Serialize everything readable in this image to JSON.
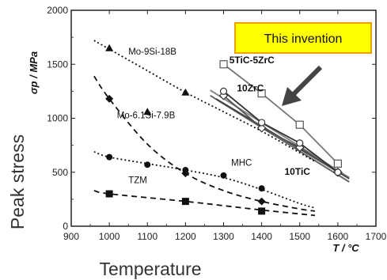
{
  "chart_data": {
    "type": "line",
    "title": "",
    "ylabel": "σp / MPa",
    "xlabel": "T / °C",
    "xlim": [
      900,
      1700
    ],
    "ylim": [
      0,
      2000
    ],
    "x_ticks": [
      "900",
      "1000",
      "1100",
      "1200",
      "1300",
      "1400",
      "1500",
      "1600",
      "1700"
    ],
    "y_ticks": [
      "0",
      "500",
      "1000",
      "1500",
      "2000"
    ],
    "grid": false,
    "series": [
      {
        "name": "Mo-9Si-18B",
        "marker": "triangle",
        "line": "dotted",
        "color": "#111111",
        "points": [
          [
            1000,
            1650
          ],
          [
            1100,
            1060
          ],
          [
            1200,
            1240
          ]
        ],
        "curve": [
          [
            960,
            1720
          ],
          [
            1000,
            1640
          ],
          [
            1100,
            1440
          ],
          [
            1200,
            1240
          ],
          [
            1300,
            1060
          ],
          [
            1400,
            880
          ],
          [
            1500,
            680
          ],
          [
            1540,
            600
          ]
        ]
      },
      {
        "name": "Mo-6.1Si-7.9B",
        "marker": "diamond",
        "line": "dashed",
        "color": "#111111",
        "points": [
          [
            1000,
            1180
          ],
          [
            1200,
            490
          ],
          [
            1400,
            230
          ]
        ],
        "curve": [
          [
            960,
            1390
          ],
          [
            1000,
            1180
          ],
          [
            1100,
            760
          ],
          [
            1200,
            490
          ],
          [
            1300,
            330
          ],
          [
            1400,
            230
          ],
          [
            1500,
            160
          ],
          [
            1540,
            140
          ]
        ]
      },
      {
        "name": "MHC",
        "marker": "circle",
        "line": "dotted",
        "color": "#111111",
        "points": [
          [
            1000,
            640
          ],
          [
            1100,
            570
          ],
          [
            1200,
            520
          ],
          [
            1300,
            470
          ],
          [
            1400,
            350
          ]
        ],
        "curve": [
          [
            960,
            690
          ],
          [
            1000,
            640
          ],
          [
            1100,
            580
          ],
          [
            1200,
            520
          ],
          [
            1300,
            450
          ],
          [
            1400,
            340
          ],
          [
            1500,
            210
          ],
          [
            1540,
            170
          ]
        ]
      },
      {
        "name": "TZM",
        "marker": "square",
        "line": "dashed",
        "color": "#111111",
        "points": [
          [
            1000,
            300
          ],
          [
            1200,
            230
          ],
          [
            1400,
            140
          ]
        ],
        "curve": [
          [
            960,
            330
          ],
          [
            1000,
            300
          ],
          [
            1200,
            230
          ],
          [
            1400,
            150
          ],
          [
            1540,
            100
          ]
        ]
      },
      {
        "name": "5TiC-5ZrC",
        "marker": "open-square",
        "line": "solid",
        "color": "#777777",
        "points": [
          [
            1300,
            1500
          ],
          [
            1400,
            1230
          ],
          [
            1500,
            940
          ],
          [
            1600,
            580
          ]
        ]
      },
      {
        "name": "10ZrC",
        "marker": "open-diamond",
        "line": "solid",
        "color": "#555555",
        "points": [
          [
            1300,
            1210
          ],
          [
            1400,
            910
          ],
          [
            1500,
            730
          ],
          [
            1600,
            500
          ]
        ]
      },
      {
        "name": "10TiC",
        "marker": "open-circle",
        "line": "solid",
        "color": "#333333",
        "points": [
          [
            1300,
            1250
          ],
          [
            1400,
            960
          ],
          [
            1500,
            770
          ],
          [
            1600,
            500
          ]
        ]
      }
    ],
    "fit_lines": [
      {
        "color": "#666666",
        "points": [
          [
            1265,
            1210
          ],
          [
            1630,
            410
          ]
        ]
      },
      {
        "color": "#888888",
        "points": [
          [
            1265,
            1260
          ],
          [
            1630,
            450
          ]
        ]
      },
      {
        "color": "#444444",
        "points": [
          [
            1280,
            1180
          ],
          [
            1630,
            440
          ]
        ]
      }
    ],
    "annotations": [
      {
        "text": "Mo-9Si-18B",
        "at": [
          1050,
          1590
        ]
      },
      {
        "text": "Mo-6.1Si-7.9B",
        "at": [
          1020,
          1000
        ]
      },
      {
        "text": "MHC",
        "at": [
          1320,
          560
        ]
      },
      {
        "text": "TZM",
        "at": [
          1050,
          400
        ]
      },
      {
        "text": "5TiC-5ZrC",
        "at": [
          1315,
          1510
        ]
      },
      {
        "text": "10ZrC",
        "at": [
          1335,
          1250
        ]
      },
      {
        "text": "10TiC",
        "at": [
          1460,
          475
        ]
      }
    ],
    "highlight": {
      "text": "This invention",
      "fill": "#ffff00",
      "border": "#e8a300"
    },
    "arrow_color": "#444444"
  },
  "overlay": {
    "ylabel": "Peak stress",
    "xlabel": "Temperature"
  }
}
